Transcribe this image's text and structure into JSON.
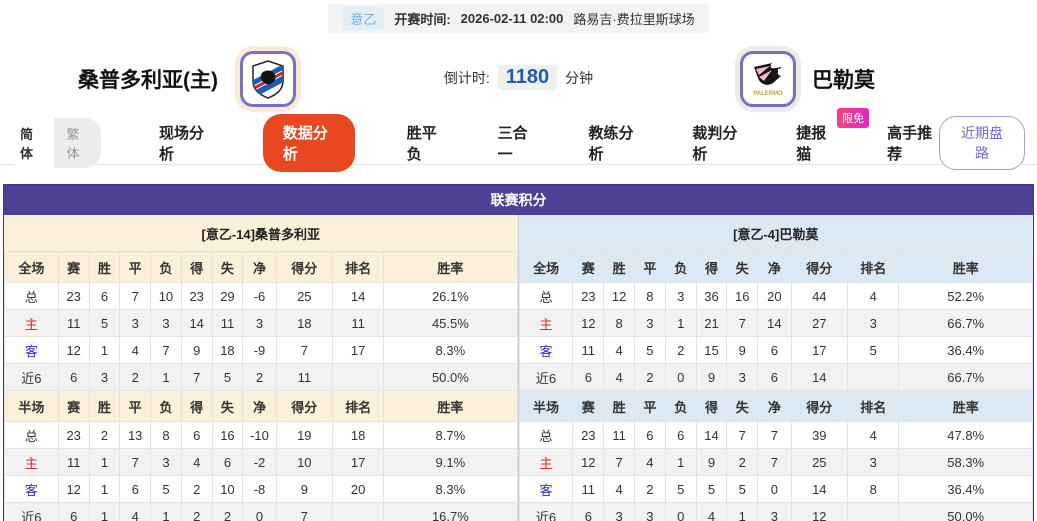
{
  "topbar": {
    "league": "意乙",
    "time_label": "开赛时间:",
    "time": "2026-02-11 02:00",
    "venue": "路易吉·费拉里斯球场"
  },
  "header": {
    "home_name": "桑普多利亚(主)",
    "away_name": "巴勒莫",
    "away_logo_text": "PALERMO",
    "countdown_label": "倒计时:",
    "countdown_value": "1180",
    "countdown_unit": "分钟"
  },
  "nav": {
    "lang": {
      "simplified": "简体",
      "traditional": "繁体"
    },
    "items": [
      {
        "label": "现场分析",
        "active": false
      },
      {
        "label": "数据分析",
        "active": true
      },
      {
        "label": "胜平负",
        "active": false
      },
      {
        "label": "三合一",
        "active": false
      },
      {
        "label": "教练分析",
        "active": false
      },
      {
        "label": "裁判分析",
        "active": false
      },
      {
        "label": "捷报猫",
        "active": false,
        "badge": "限免"
      },
      {
        "label": "高手推荐",
        "active": false
      }
    ],
    "recent_button": "近期盘路"
  },
  "league_table": {
    "title": "联赛积分",
    "left": {
      "title": "[意乙-14]桑普多利亚",
      "sections": [
        {
          "header": [
            "全场",
            "赛",
            "胜",
            "平",
            "负",
            "得",
            "失",
            "净",
            "得分",
            "排名",
            "胜率"
          ],
          "rows": [
            {
              "label": "总",
              "type": "total",
              "values": [
                "23",
                "6",
                "7",
                "10",
                "23",
                "29",
                "-6",
                "25",
                "14",
                "26.1%"
              ]
            },
            {
              "label": "主",
              "type": "home",
              "values": [
                "11",
                "5",
                "3",
                "3",
                "14",
                "11",
                "3",
                "18",
                "11",
                "45.5%"
              ]
            },
            {
              "label": "客",
              "type": "away",
              "values": [
                "12",
                "1",
                "4",
                "7",
                "9",
                "18",
                "-9",
                "7",
                "17",
                "8.3%"
              ]
            },
            {
              "label": "近6",
              "type": "recent",
              "values": [
                "6",
                "3",
                "2",
                "1",
                "7",
                "5",
                "2",
                "11",
                "",
                "50.0%"
              ]
            }
          ]
        },
        {
          "header": [
            "半场",
            "赛",
            "胜",
            "平",
            "负",
            "得",
            "失",
            "净",
            "得分",
            "排名",
            "胜率"
          ],
          "rows": [
            {
              "label": "总",
              "type": "total",
              "values": [
                "23",
                "2",
                "13",
                "8",
                "6",
                "16",
                "-10",
                "19",
                "18",
                "8.7%"
              ]
            },
            {
              "label": "主",
              "type": "home",
              "values": [
                "11",
                "1",
                "7",
                "3",
                "4",
                "6",
                "-2",
                "10",
                "17",
                "9.1%"
              ]
            },
            {
              "label": "客",
              "type": "away",
              "values": [
                "12",
                "1",
                "6",
                "5",
                "2",
                "10",
                "-8",
                "9",
                "20",
                "8.3%"
              ]
            },
            {
              "label": "近6",
              "type": "recent",
              "values": [
                "6",
                "1",
                "4",
                "1",
                "2",
                "2",
                "0",
                "7",
                "",
                "16.7%"
              ]
            }
          ]
        }
      ]
    },
    "right": {
      "title": "[意乙-4]巴勒莫",
      "sections": [
        {
          "header": [
            "全场",
            "赛",
            "胜",
            "平",
            "负",
            "得",
            "失",
            "净",
            "得分",
            "排名",
            "胜率"
          ],
          "rows": [
            {
              "label": "总",
              "type": "total",
              "values": [
                "23",
                "12",
                "8",
                "3",
                "36",
                "16",
                "20",
                "44",
                "4",
                "52.2%"
              ]
            },
            {
              "label": "主",
              "type": "home",
              "values": [
                "12",
                "8",
                "3",
                "1",
                "21",
                "7",
                "14",
                "27",
                "3",
                "66.7%"
              ]
            },
            {
              "label": "客",
              "type": "away",
              "values": [
                "11",
                "4",
                "5",
                "2",
                "15",
                "9",
                "6",
                "17",
                "5",
                "36.4%"
              ]
            },
            {
              "label": "近6",
              "type": "recent",
              "values": [
                "6",
                "4",
                "2",
                "0",
                "9",
                "3",
                "6",
                "14",
                "",
                "66.7%"
              ]
            }
          ]
        },
        {
          "header": [
            "半场",
            "赛",
            "胜",
            "平",
            "负",
            "得",
            "失",
            "净",
            "得分",
            "排名",
            "胜率"
          ],
          "rows": [
            {
              "label": "总",
              "type": "total",
              "values": [
                "23",
                "11",
                "6",
                "6",
                "14",
                "7",
                "7",
                "39",
                "4",
                "47.8%"
              ]
            },
            {
              "label": "主",
              "type": "home",
              "values": [
                "12",
                "7",
                "4",
                "1",
                "9",
                "2",
                "7",
                "25",
                "3",
                "58.3%"
              ]
            },
            {
              "label": "客",
              "type": "away",
              "values": [
                "11",
                "4",
                "2",
                "5",
                "5",
                "5",
                "0",
                "14",
                "8",
                "36.4%"
              ]
            },
            {
              "label": "近6",
              "type": "recent",
              "values": [
                "6",
                "3",
                "3",
                "0",
                "4",
                "1",
                "3",
                "12",
                "",
                "50.0%"
              ]
            }
          ]
        }
      ]
    }
  },
  "colors": {
    "table_header_purple": "#4e4095",
    "active_tab_orange": "#e8481f",
    "badge_pink": "#ee30a7",
    "countdown_blue": "#1d5bb5",
    "home_red": "#d03030",
    "away_blue": "#2d2dcc",
    "left_panel_cream": "#fbf0d9",
    "right_panel_blue": "#dce8f2"
  }
}
